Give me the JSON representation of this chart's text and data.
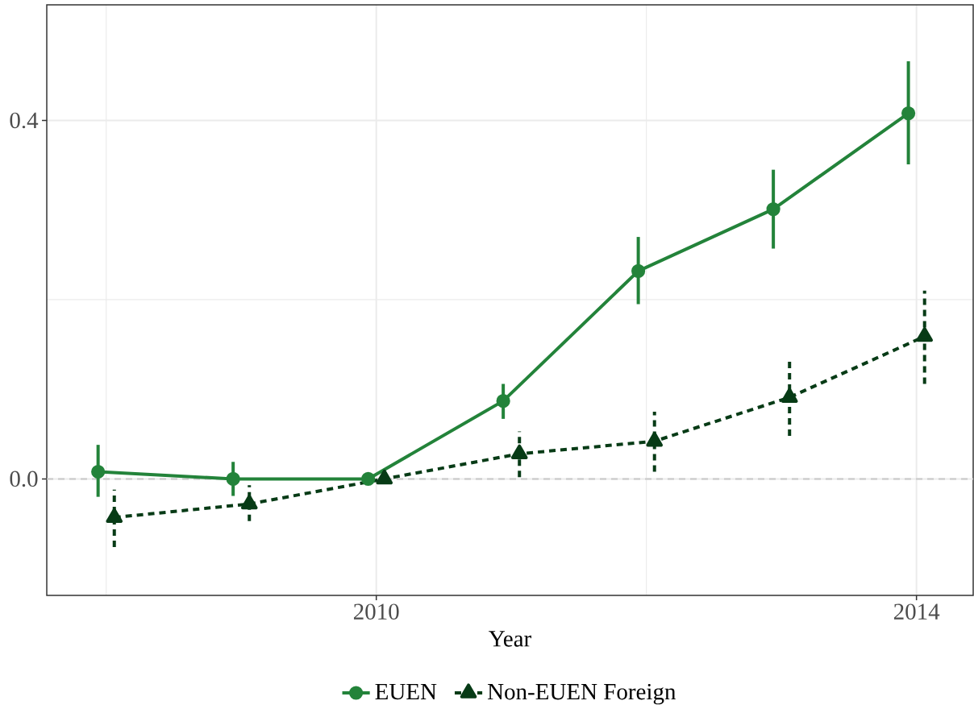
{
  "chart_data": {
    "type": "line",
    "xlabel": "Year",
    "series": [
      {
        "name": "EUEN",
        "color": "#23833a",
        "marker": "circle",
        "line_style": "solid",
        "x": [
          2007.94,
          2008.94,
          2009.94,
          2010.94,
          2011.94,
          2012.94,
          2013.94
        ],
        "values": [
          0.008,
          0.0,
          0.0,
          0.087,
          0.232,
          0.301,
          0.408
        ],
        "errors": [
          [
            -0.02,
            0.038
          ],
          [
            -0.019,
            0.019
          ],
          null,
          [
            0.067,
            0.106
          ],
          [
            0.195,
            0.27
          ],
          [
            0.257,
            0.345
          ],
          [
            0.351,
            0.466
          ]
        ]
      },
      {
        "name": "Non-EUEN Foreign",
        "color": "#073b16",
        "marker": "triangle",
        "line_style": "dashed",
        "x": [
          2008.06,
          2009.06,
          2010.06,
          2011.06,
          2012.06,
          2013.06,
          2014.06
        ],
        "values": [
          -0.043,
          -0.028,
          0.0,
          0.028,
          0.042,
          0.091,
          0.159
        ],
        "errors": [
          [
            -0.076,
            -0.012
          ],
          [
            -0.047,
            -0.007
          ],
          null,
          [
            0.002,
            0.053
          ],
          [
            0.008,
            0.075
          ],
          [
            0.048,
            0.132
          ],
          [
            0.106,
            0.21
          ]
        ]
      }
    ],
    "xlim": [
      2007.56,
      2014.42
    ],
    "ylim": [
      -0.13,
      0.529
    ],
    "xticks": [
      2010,
      2014
    ],
    "yticks": [
      {
        "value": 0,
        "label": "0.0"
      },
      {
        "value": 0.4,
        "label": "0.4"
      }
    ],
    "grid": true,
    "legend": "bottom",
    "ref_lines": [
      {
        "axis": "y",
        "value": 0,
        "color": "#c8c8c8",
        "line_style": "dashed"
      }
    ]
  }
}
